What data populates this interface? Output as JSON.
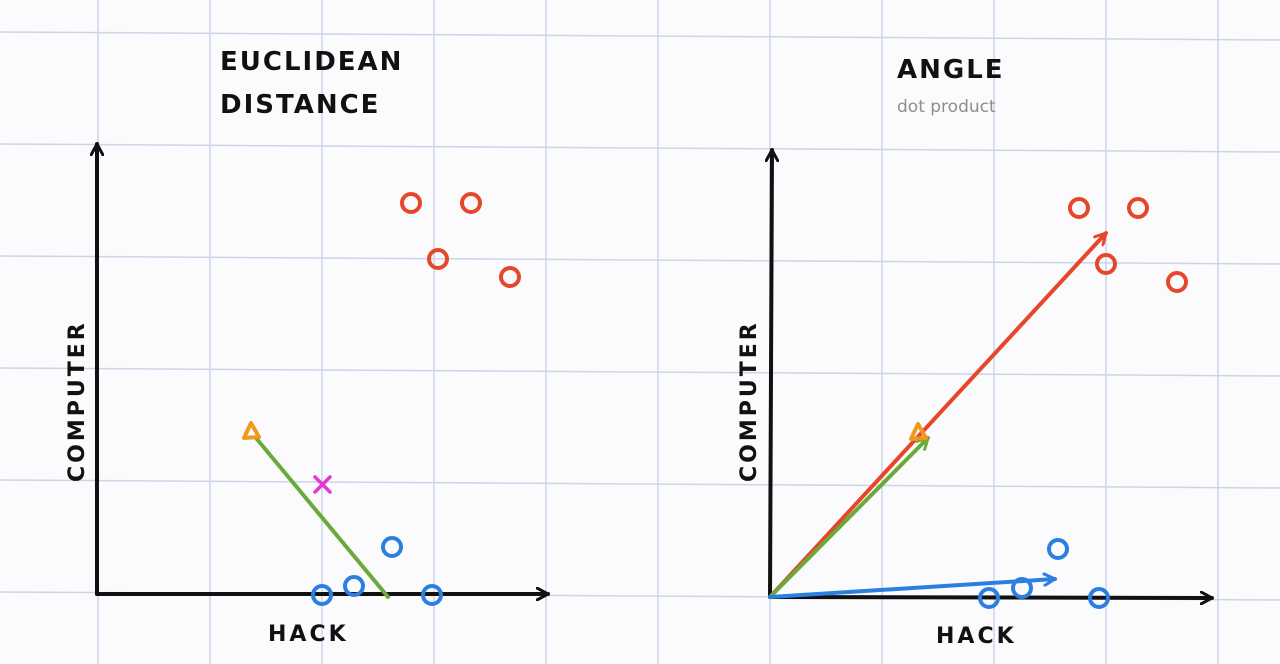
{
  "colors": {
    "red": "#e6472b",
    "blue": "#2b7fe0",
    "green": "#6aaa3a",
    "orange": "#f09a1c",
    "magenta": "#e23ad0",
    "axis": "#111111",
    "grid": "#c9d6e8"
  },
  "left_panel": {
    "title_line1": "EUCLIDEAN",
    "title_line2": "DISTANCE",
    "xlabel": "HACK",
    "ylabel": "COMPUTER"
  },
  "right_panel": {
    "title": "ANGLE",
    "subtitle": "dot product",
    "xlabel": "HACK",
    "ylabel": "COMPUTER"
  }
}
